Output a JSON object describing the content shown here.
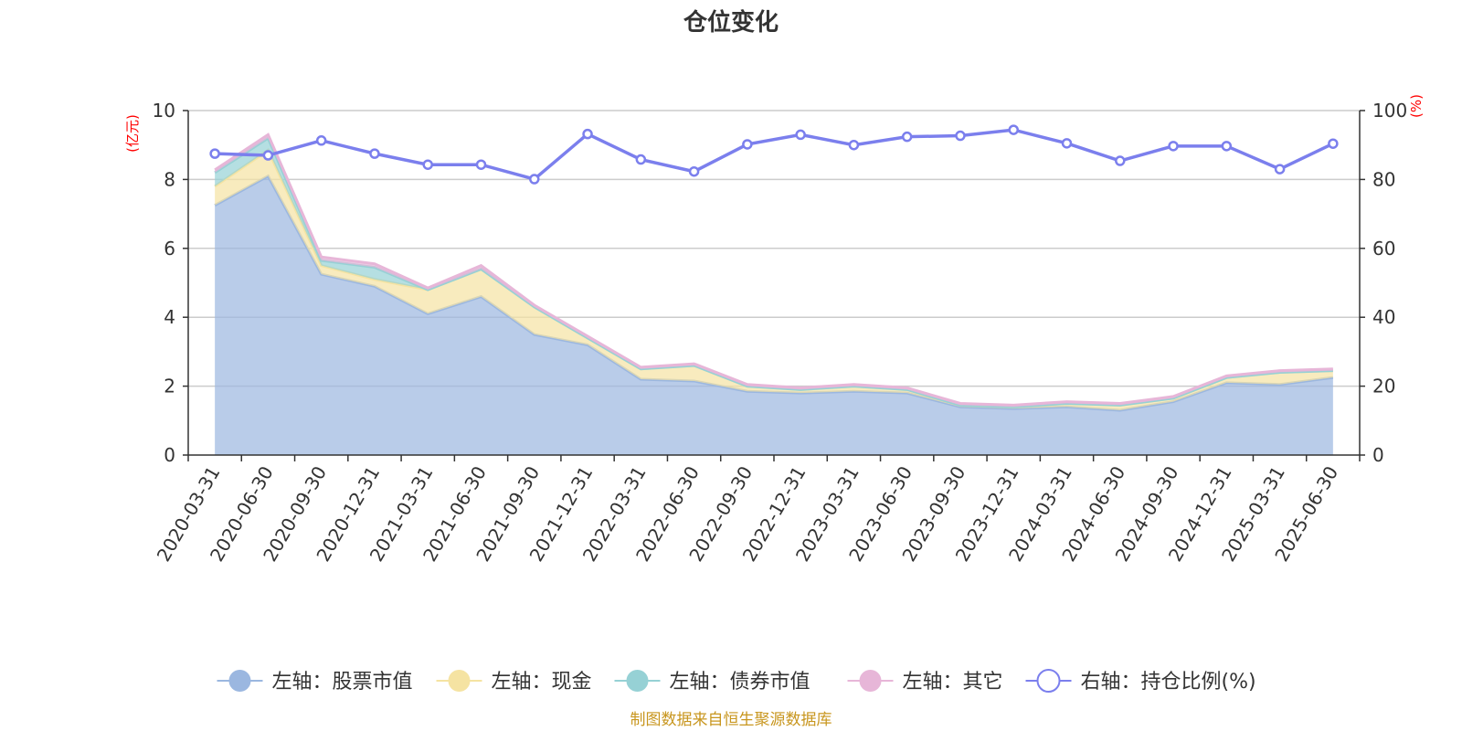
{
  "chart_data": {
    "type": "area",
    "title": "仓位变化",
    "left_axis_unit": "(亿元)",
    "right_axis_unit": "(%)",
    "x": [
      "2020-03-31",
      "2020-06-30",
      "2020-09-30",
      "2020-12-31",
      "2021-03-31",
      "2021-06-30",
      "2021-09-30",
      "2021-12-31",
      "2022-03-31",
      "2022-06-30",
      "2022-09-30",
      "2022-12-31",
      "2023-03-31",
      "2023-06-30",
      "2023-09-30",
      "2023-12-31",
      "2024-03-31",
      "2024-06-30",
      "2024-09-30",
      "2024-12-31",
      "2025-03-31",
      "2025-06-30"
    ],
    "left_ylim": [
      0,
      10
    ],
    "left_yticks": [
      "0",
      "2",
      "4",
      "6",
      "8",
      "10"
    ],
    "right_ylim": [
      0,
      100
    ],
    "right_yticks": [
      "0",
      "20",
      "40",
      "60",
      "80",
      "100"
    ],
    "grid": true,
    "legend_position": "bottom",
    "series": [
      {
        "name": "左轴：股票市值",
        "axis": "left",
        "kind": "stacked-area",
        "color": "#9bb7e0",
        "values": [
          7.25,
          8.1,
          5.25,
          4.9,
          4.1,
          4.6,
          3.5,
          3.2,
          2.2,
          2.15,
          1.85,
          1.8,
          1.85,
          1.8,
          1.4,
          1.35,
          1.4,
          1.3,
          1.55,
          2.1,
          2.05,
          2.25
        ]
      },
      {
        "name": "左轴：现金",
        "axis": "left",
        "kind": "stacked-area",
        "color": "#f5e3a2",
        "values": [
          0.55,
          0.75,
          0.25,
          0.2,
          0.7,
          0.8,
          0.8,
          0.2,
          0.3,
          0.45,
          0.15,
          0.1,
          0.15,
          0.1,
          0.05,
          0.05,
          0.1,
          0.15,
          0.1,
          0.15,
          0.35,
          0.2
        ]
      },
      {
        "name": "左轴：债券市值",
        "axis": "left",
        "kind": "stacked-area",
        "color": "#96d1d5",
        "values": [
          0.4,
          0.35,
          0.15,
          0.35,
          0,
          0,
          0,
          0,
          0,
          0,
          0,
          0,
          0,
          0,
          0,
          0,
          0,
          0,
          0,
          0,
          0,
          0
        ]
      },
      {
        "name": "左轴：其它",
        "axis": "left",
        "kind": "stacked-area",
        "color": "#e7b6d8",
        "values": [
          0.08,
          0.1,
          0.1,
          0.1,
          0.05,
          0.1,
          0.05,
          0.05,
          0.05,
          0.05,
          0.05,
          0.05,
          0.05,
          0.05,
          0.05,
          0.05,
          0.05,
          0.05,
          0.05,
          0.05,
          0.05,
          0.05
        ]
      },
      {
        "name": "右轴：持仓比例(%)",
        "axis": "right",
        "kind": "line",
        "color": "#7b7fed",
        "values": [
          87.5,
          87.0,
          91.3,
          87.5,
          84.3,
          84.3,
          80.1,
          93.2,
          85.8,
          82.3,
          90.2,
          93.0,
          90.0,
          92.4,
          92.7,
          94.4,
          90.5,
          85.4,
          89.7,
          89.7,
          83.0,
          90.4
        ]
      }
    ]
  },
  "source_note": "制图数据来自恒生聚源数据库"
}
